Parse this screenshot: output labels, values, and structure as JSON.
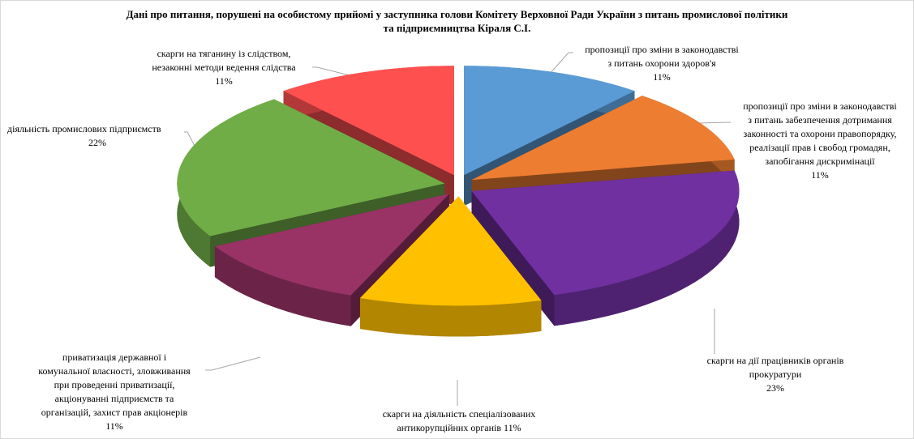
{
  "chart_data": {
    "type": "pie",
    "title": "Дані про питання, порушені на особистому прийомі у заступника голови Комітету Верховної Ради України з питань промислової політики\nта підприємництва Кіраля С.І.",
    "categories": [
      "пропозиції про зміни в законодавстві\nз питань охорони здоров'я",
      "пропозиції про зміни в законодавстві\nз питань забезпечення дотримання\nзаконності та охорони правопорядку,\nреалізації прав і свобод громадян,\nзапобігання дискримінації",
      "скарги на дії працівників органів\nпрокуратури",
      "скарги на діяльність спеціалізованих\nантикорупційних органів",
      "приватизація державної і\nкомунальної власності, зловживання\nпри проведенні приватизації,\nакціонуванні підприємств та\nорганізацій, захист прав акціонерів",
      "діяльність промислових підприємств",
      "скарги на тяганину із слідством,\nнезаконні методи ведення слідства"
    ],
    "values": [
      11,
      11,
      23,
      11,
      11,
      22,
      11
    ],
    "value_labels": [
      "11%",
      "11%",
      "23%",
      "11%",
      "11%",
      "22%",
      "11%"
    ],
    "colors": [
      "#5b9bd5",
      "#ed7d31",
      "#7030a0",
      "#ffc000",
      "#993366",
      "#70ad47",
      "#ff5050"
    ]
  }
}
